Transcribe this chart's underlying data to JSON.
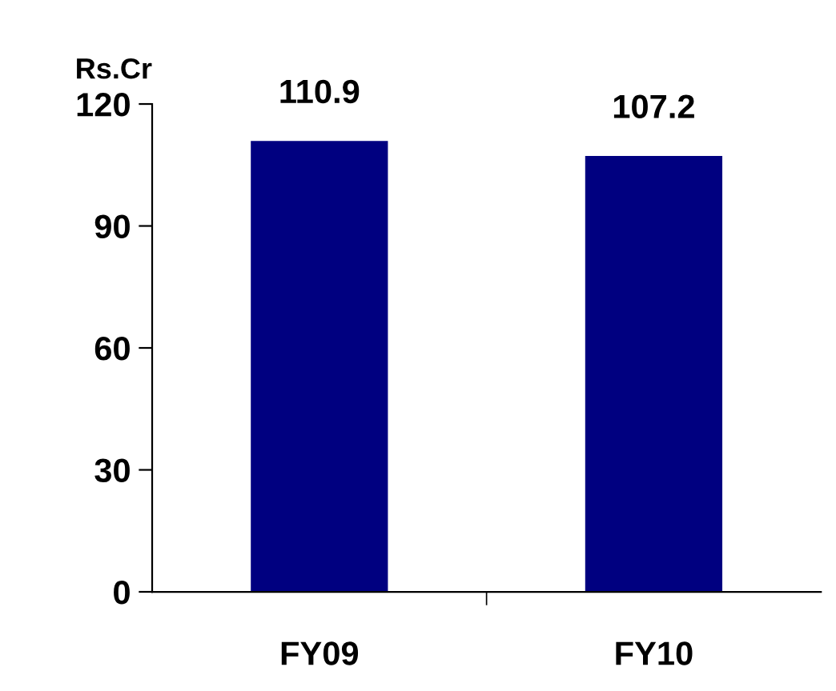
{
  "chart_data": {
    "type": "bar",
    "ylabel": "Rs.Cr",
    "categories": [
      "FY09",
      "FY10"
    ],
    "values": [
      110.9,
      107.2
    ],
    "color": "#000080",
    "ylim": [
      0,
      120
    ],
    "yticks": [
      0,
      30,
      60,
      90,
      120
    ],
    "grid": false,
    "data_labels": true
  }
}
